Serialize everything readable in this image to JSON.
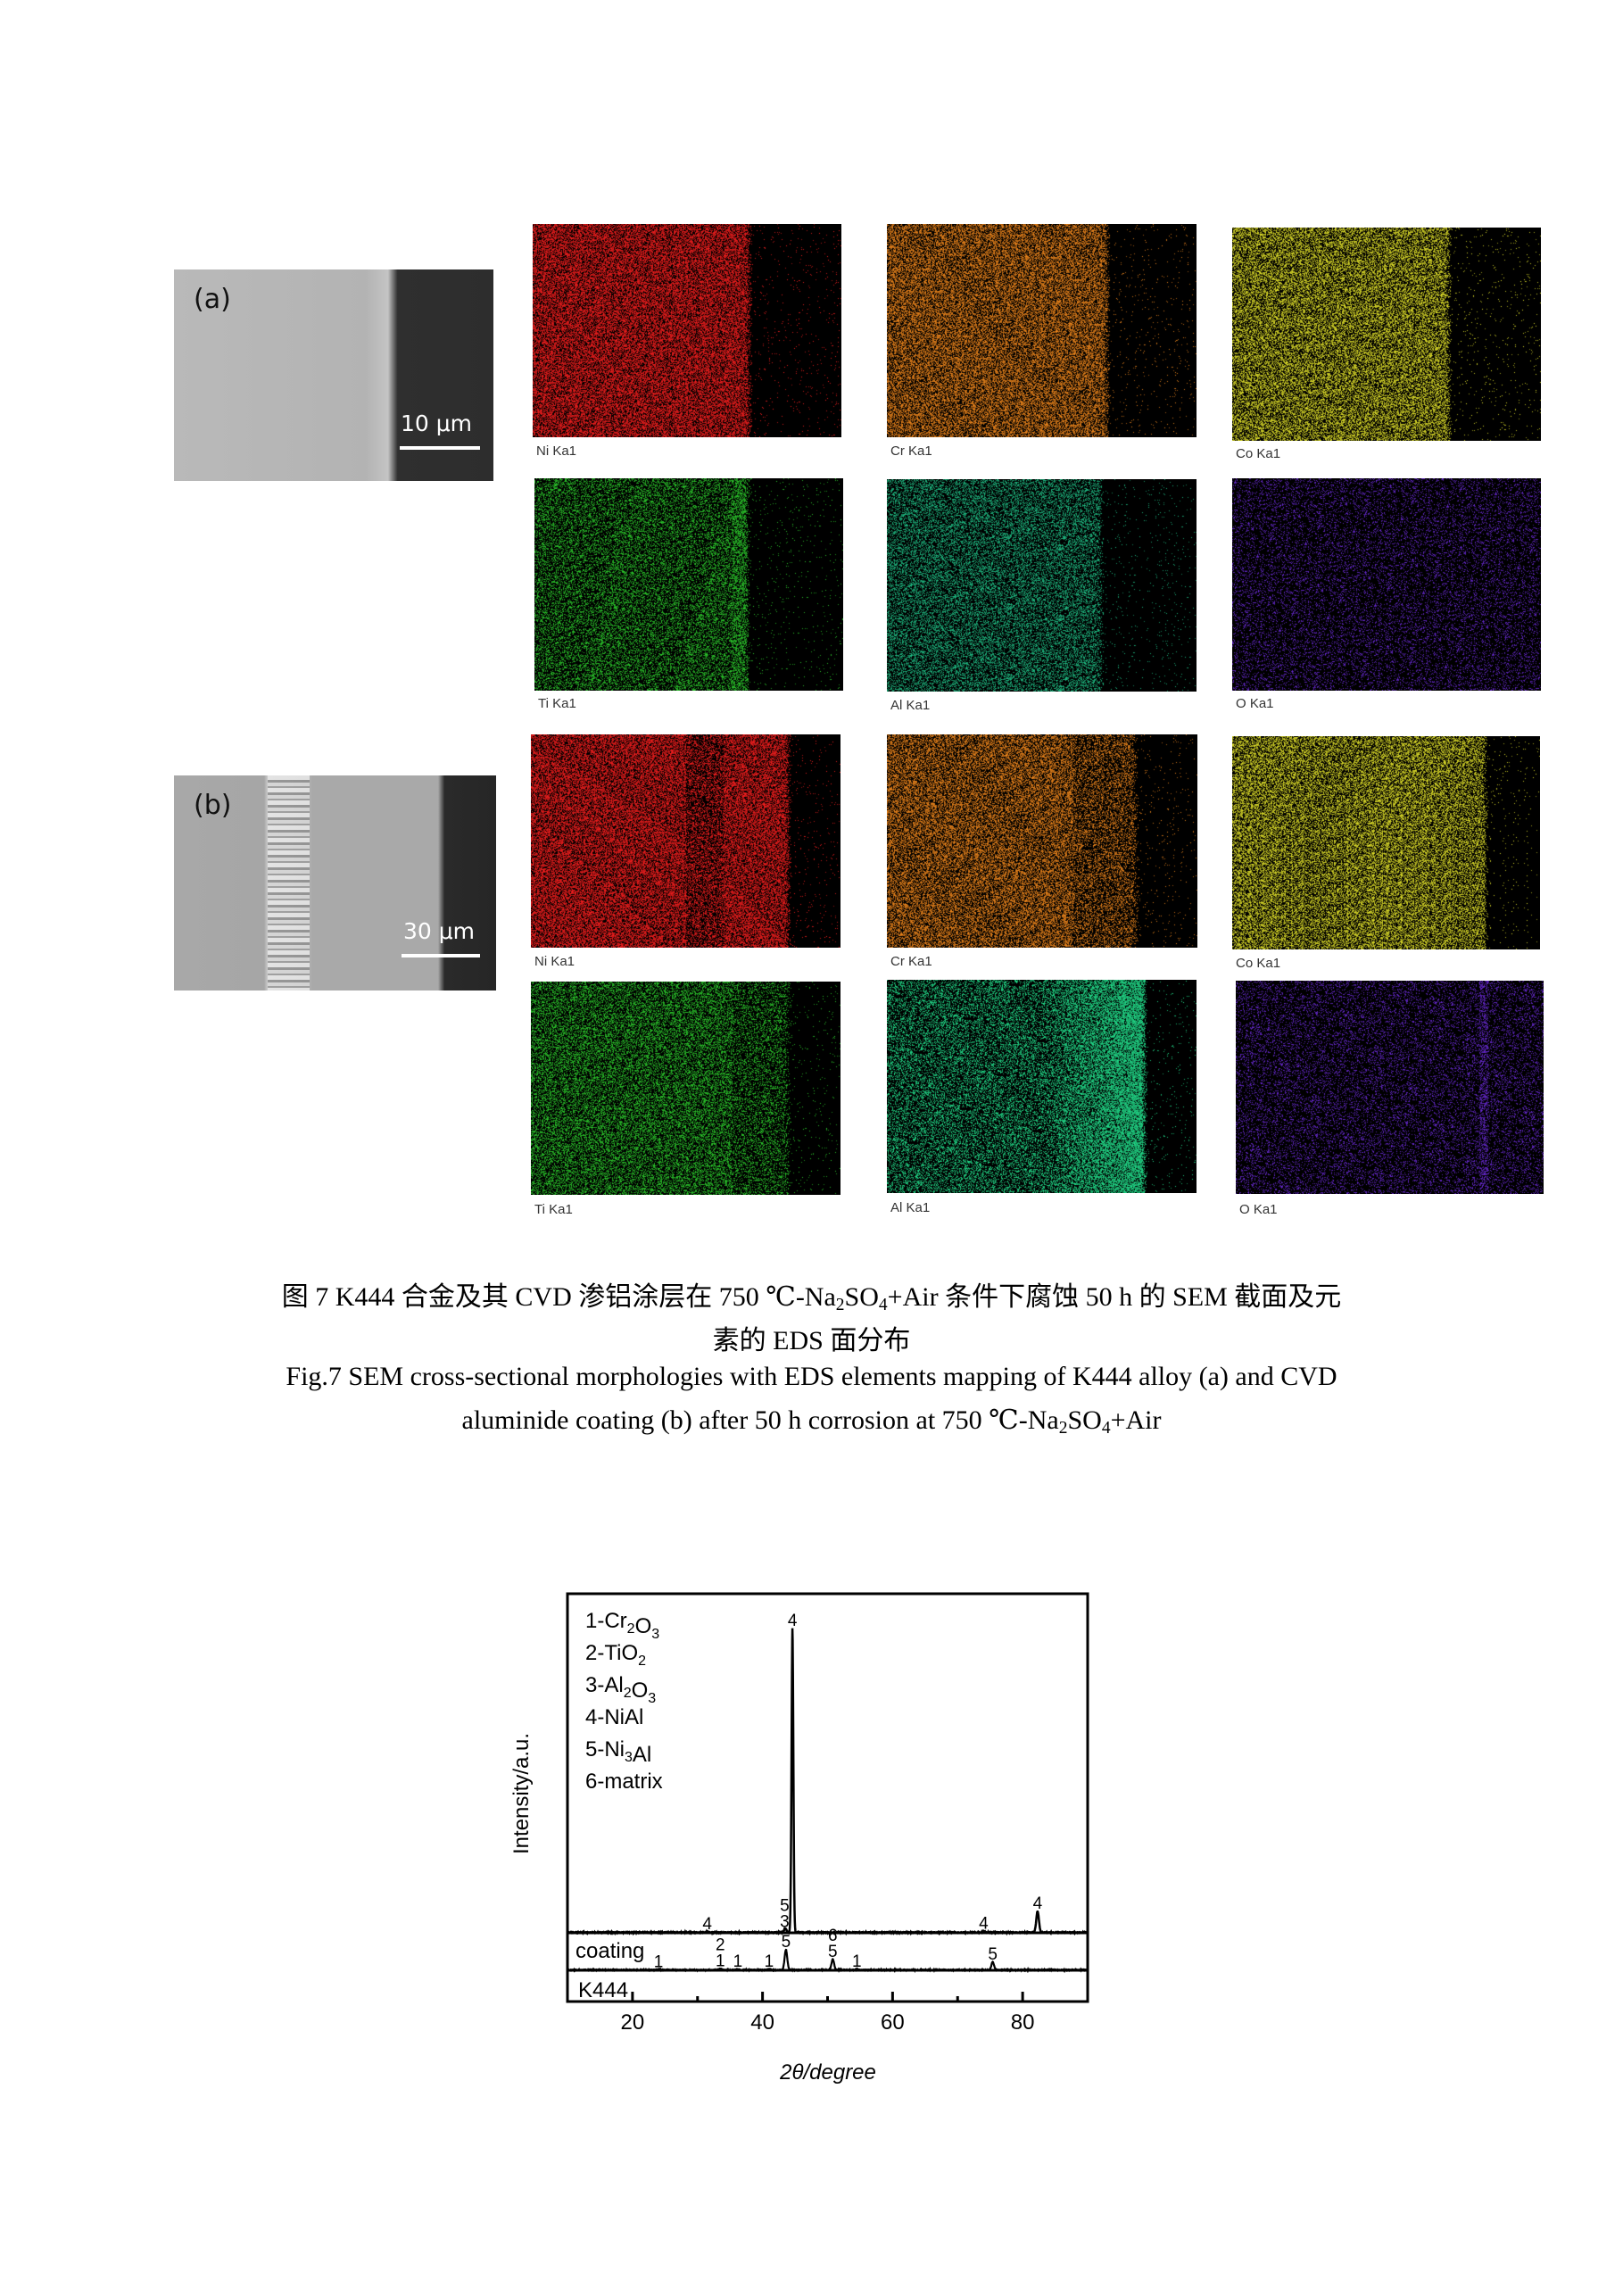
{
  "figure7": {
    "sem_a": {
      "panel_label": "(a)",
      "scale_label": "10 μm"
    },
    "sem_b": {
      "panel_label": "(b)",
      "scale_label": "30 μm"
    },
    "maps_a": [
      {
        "label": "Ni Ka1",
        "color": "#f41e1e"
      },
      {
        "label": "Cr Ka1",
        "color": "#f0871c"
      },
      {
        "label": "Co Ka1",
        "color": "#e2e22a"
      },
      {
        "label": "Ti Ka1",
        "color": "#2ccc2c"
      },
      {
        "label": "Al Ka1",
        "color": "#1fbf85"
      },
      {
        "label": "O Ka1",
        "color": "#6a2ad6"
      }
    ],
    "maps_b": [
      {
        "label": "Ni Ka1",
        "color": "#f41e1e"
      },
      {
        "label": "Cr Ka1",
        "color": "#f0871c"
      },
      {
        "label": "Co Ka1",
        "color": "#e2e22a"
      },
      {
        "label": "Ti Ka1",
        "color": "#2ccc2c"
      },
      {
        "label": "Al Ka1",
        "color": "#22e08c"
      },
      {
        "label": "O Ka1",
        "color": "#6a2ad6"
      }
    ],
    "caption_cn": {
      "l1_a": "图 7 K444 合金及其 CVD 渗铝涂层在 750 ℃-Na",
      "l1_s1": "2",
      "l1_b": "SO",
      "l1_s2": "4",
      "l1_c": "+Air 条件下腐蚀 50 h 的 SEM 截面及元",
      "l2": "素的 EDS 面分布"
    },
    "caption_en": {
      "l1": "Fig.7 SEM cross-sectional morphologies with EDS elements mapping of K444 alloy (a) and CVD",
      "l2_a": "aluminide coating (b) after 50 h corrosion at 750 ℃-Na",
      "l2_s1": "2",
      "l2_b": "SO",
      "l2_s2": "4",
      "l2_c": "+Air"
    }
  },
  "chart_data": {
    "type": "line",
    "xlabel": "2θ/degree",
    "ylabel": "Intensity/a.u.",
    "xlim": [
      10,
      90
    ],
    "x_ticks": [
      20,
      40,
      60,
      80
    ],
    "grid": false,
    "legend": {
      "placement": "top-left",
      "entries": [
        {
          "num": "1-",
          "a": "Cr",
          "s1": "2",
          "b": "O",
          "s2": "3"
        },
        {
          "num": "2-",
          "a": "TiO",
          "s1": "2",
          "b": "",
          "s2": ""
        },
        {
          "num": "3-",
          "a": "Al",
          "s1": "2",
          "b": "O",
          "s2": "3"
        },
        {
          "num": "4-",
          "a": "NiAl",
          "s1": "",
          "b": "",
          "s2": ""
        },
        {
          "num": "5-",
          "a": "Ni",
          "s1": "3",
          "b": "Al",
          "s2": ""
        },
        {
          "num": "6-",
          "a": "matrix",
          "s1": "",
          "b": "",
          "s2": ""
        }
      ]
    },
    "series": [
      {
        "name": "coating",
        "peaks": [
          {
            "x": 31.5,
            "intensity": 0.3
          },
          {
            "x": 43.5,
            "intensity": 1.2
          },
          {
            "x": 44.6,
            "intensity": 100
          },
          {
            "x": 74.0,
            "intensity": 0.4
          },
          {
            "x": 82.3,
            "intensity": 7.0
          }
        ],
        "annotations": [
          {
            "x": 31.5,
            "labels": [
              "4"
            ]
          },
          {
            "x": 43.4,
            "labels": [
              "3",
              "5"
            ]
          },
          {
            "x": 44.6,
            "labels": [
              "4"
            ]
          },
          {
            "x": 74.0,
            "labels": [
              "4"
            ]
          },
          {
            "x": 82.3,
            "labels": [
              "4"
            ]
          }
        ]
      },
      {
        "name": "K444",
        "peaks": [
          {
            "x": 24.0,
            "intensity": 0.2
          },
          {
            "x": 33.5,
            "intensity": 0.4
          },
          {
            "x": 36.2,
            "intensity": 0.3
          },
          {
            "x": 41.0,
            "intensity": 0.3
          },
          {
            "x": 43.6,
            "intensity": 6.7
          },
          {
            "x": 50.8,
            "intensity": 3.5
          },
          {
            "x": 54.5,
            "intensity": 0.3
          },
          {
            "x": 75.4,
            "intensity": 2.6
          }
        ],
        "annotations": [
          {
            "x": 24.0,
            "labels": [
              "1"
            ]
          },
          {
            "x": 33.5,
            "labels": [
              "1",
              "2"
            ]
          },
          {
            "x": 36.2,
            "labels": [
              "1"
            ]
          },
          {
            "x": 41.0,
            "labels": [
              "1"
            ]
          },
          {
            "x": 43.6,
            "labels": [
              "5"
            ]
          },
          {
            "x": 50.8,
            "labels": [
              "5",
              "6"
            ]
          },
          {
            "x": 54.5,
            "labels": [
              "1"
            ]
          },
          {
            "x": 75.4,
            "labels": [
              "5"
            ]
          }
        ]
      }
    ]
  }
}
